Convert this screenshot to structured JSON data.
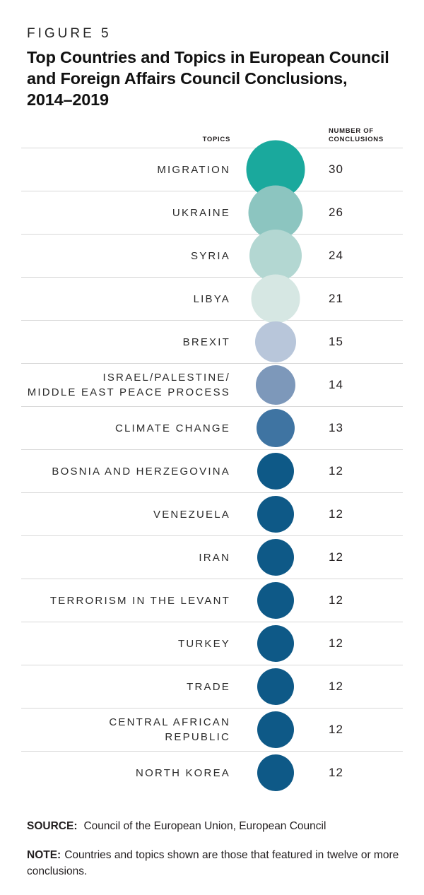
{
  "figure": {
    "label": "FIGURE 5",
    "title": "Top Countries and Topics in European Council\nand Foreign Affairs Council Conclusions,\n2014–2019"
  },
  "chart_data": {
    "type": "bubble",
    "title": "Top Countries and Topics in European Council and Foreign Affairs Council Conclusions, 2014–2019",
    "topics_header": "TOPICS",
    "value_header": "NUMBER OF\nCONCLUSIONS",
    "value_axis_label": "Number of Conclusions",
    "bubble_scale": "area proportional to value",
    "rows": [
      {
        "label": "MIGRATION",
        "value": 30,
        "color": "#1aa99d"
      },
      {
        "label": "UKRAINE",
        "value": 26,
        "color": "#8cc5c0"
      },
      {
        "label": "SYRIA",
        "value": 24,
        "color": "#b3d7d2"
      },
      {
        "label": "LIBYA",
        "value": 21,
        "color": "#d6e7e3"
      },
      {
        "label": "BREXIT",
        "value": 15,
        "color": "#b8c6da"
      },
      {
        "label": "ISRAEL/PALESTINE/\nMIDDLE EAST PEACE PROCESS",
        "value": 14,
        "color": "#7d98ba"
      },
      {
        "label": "CLIMATE CHANGE",
        "value": 13,
        "color": "#3f74a2"
      },
      {
        "label": "BOSNIA AND HERZEGOVINA",
        "value": 12,
        "color": "#0e5987"
      },
      {
        "label": "VENEZUELA",
        "value": 12,
        "color": "#0e5987"
      },
      {
        "label": "IRAN",
        "value": 12,
        "color": "#0e5987"
      },
      {
        "label": "TERRORISM IN THE LEVANT",
        "value": 12,
        "color": "#0e5987"
      },
      {
        "label": "TURKEY",
        "value": 12,
        "color": "#0e5987"
      },
      {
        "label": "TRADE",
        "value": 12,
        "color": "#0e5987"
      },
      {
        "label": "CENTRAL AFRICAN\nREPUBLIC",
        "value": 12,
        "color": "#0e5987"
      },
      {
        "label": "NORTH KOREA",
        "value": 12,
        "color": "#0e5987"
      }
    ],
    "divider_color": "#d8d8d8"
  },
  "footer": {
    "source_label": "SOURCE:",
    "source_text": "Council of the European Union, European Council",
    "note_label": "NOTE:",
    "note_text": "Countries and topics shown are those that featured in twelve or more conclusions."
  }
}
